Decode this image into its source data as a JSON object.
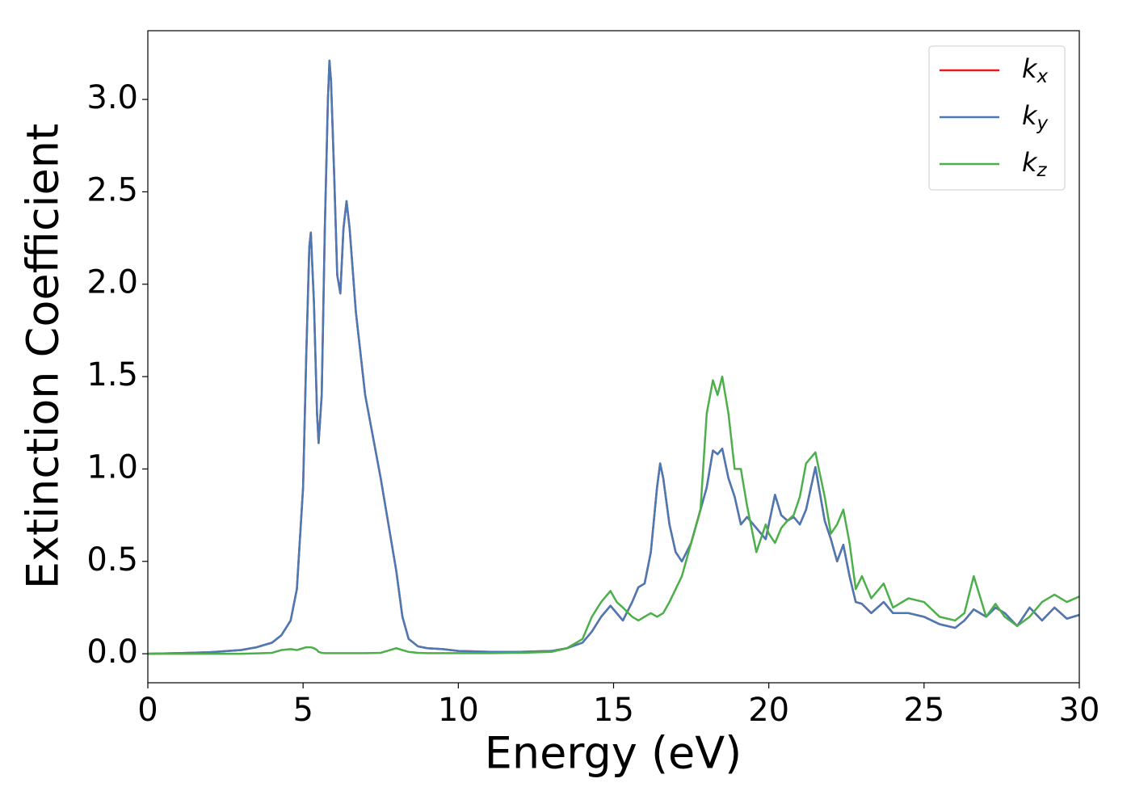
{
  "chart_data": {
    "type": "line",
    "xlabel": "Energy (eV)",
    "ylabel": "Extinction Coefficient",
    "xlim": [
      0,
      30
    ],
    "xticks": [
      0,
      5,
      10,
      15,
      20,
      25,
      30
    ],
    "ylim": [
      -0.157,
      3.372
    ],
    "yticks": [
      {
        "value": 0,
        "label": "0.0"
      },
      0.5,
      {
        "value": 1,
        "label": "1.0"
      },
      1.5,
      {
        "value": 2,
        "label": "2.0"
      },
      2.5,
      {
        "value": 3,
        "label": "3.0"
      }
    ],
    "legend": "upper right",
    "x": [
      0,
      1,
      2,
      3,
      3.5,
      4,
      4.3,
      4.6,
      4.8,
      5,
      5.1,
      5.2,
      5.25,
      5.35,
      5.45,
      5.5,
      5.6,
      5.7,
      5.8,
      5.85,
      5.9,
      6,
      6.1,
      6.2,
      6.3,
      6.4,
      6.5,
      6.7,
      7,
      7.5,
      7.8,
      8,
      8.2,
      8.4,
      8.7,
      9,
      9.5,
      10,
      11,
      12,
      13,
      13.5,
      14,
      14.3,
      14.6,
      14.9,
      15.1,
      15.3,
      15.6,
      15.8,
      16,
      16.2,
      16.4,
      16.5,
      16.6,
      16.8,
      17,
      17.2,
      17.5,
      17.8,
      18,
      18.2,
      18.35,
      18.5,
      18.7,
      18.9,
      19.1,
      19.3,
      19.6,
      19.9,
      20,
      20.2,
      20.4,
      20.6,
      20.8,
      21,
      21.2,
      21.5,
      21.8,
      22,
      22.2,
      22.4,
      22.6,
      22.8,
      23,
      23.3,
      23.7,
      24,
      24.5,
      25,
      25.5,
      26,
      26.3,
      26.6,
      27,
      27.3,
      27.6,
      28,
      28.4,
      28.8,
      29.2,
      29.6,
      30
    ],
    "series": [
      {
        "name": "kx",
        "color": "#e41a1c",
        "values": [
          0,
          0.003,
          0.008,
          0.02,
          0.035,
          0.06,
          0.1,
          0.18,
          0.35,
          0.9,
          1.6,
          2.2,
          2.28,
          1.9,
          1.3,
          1.14,
          1.4,
          2.3,
          3.0,
          3.21,
          3.1,
          2.6,
          2.05,
          1.95,
          2.3,
          2.45,
          2.3,
          1.85,
          1.4,
          0.95,
          0.65,
          0.45,
          0.2,
          0.08,
          0.04,
          0.03,
          0.025,
          0.015,
          0.01,
          0.01,
          0.015,
          0.03,
          0.06,
          0.12,
          0.2,
          0.26,
          0.22,
          0.18,
          0.28,
          0.36,
          0.38,
          0.55,
          0.9,
          1.03,
          0.95,
          0.7,
          0.55,
          0.5,
          0.6,
          0.78,
          0.9,
          1.1,
          1.08,
          1.11,
          0.95,
          0.85,
          0.7,
          0.74,
          0.68,
          0.62,
          0.7,
          0.86,
          0.75,
          0.72,
          0.74,
          0.7,
          0.78,
          1.01,
          0.72,
          0.62,
          0.5,
          0.59,
          0.42,
          0.28,
          0.27,
          0.22,
          0.28,
          0.22,
          0.22,
          0.2,
          0.16,
          0.14,
          0.18,
          0.24,
          0.2,
          0.25,
          0.22,
          0.15,
          0.25,
          0.18,
          0.25,
          0.19,
          0.21
        ]
      },
      {
        "name": "ky",
        "color": "#4a7ab5",
        "values": [
          0,
          0.003,
          0.008,
          0.02,
          0.035,
          0.06,
          0.1,
          0.18,
          0.35,
          0.9,
          1.6,
          2.2,
          2.28,
          1.9,
          1.3,
          1.14,
          1.4,
          2.3,
          3.0,
          3.21,
          3.1,
          2.6,
          2.05,
          1.95,
          2.3,
          2.45,
          2.3,
          1.85,
          1.4,
          0.95,
          0.65,
          0.45,
          0.2,
          0.08,
          0.04,
          0.03,
          0.025,
          0.015,
          0.01,
          0.01,
          0.015,
          0.03,
          0.06,
          0.12,
          0.2,
          0.26,
          0.22,
          0.18,
          0.28,
          0.36,
          0.38,
          0.55,
          0.9,
          1.03,
          0.95,
          0.7,
          0.55,
          0.5,
          0.6,
          0.78,
          0.9,
          1.1,
          1.08,
          1.11,
          0.95,
          0.85,
          0.7,
          0.74,
          0.68,
          0.62,
          0.7,
          0.86,
          0.75,
          0.72,
          0.74,
          0.7,
          0.78,
          1.01,
          0.72,
          0.62,
          0.5,
          0.59,
          0.42,
          0.28,
          0.27,
          0.22,
          0.28,
          0.22,
          0.22,
          0.2,
          0.16,
          0.14,
          0.18,
          0.24,
          0.2,
          0.25,
          0.22,
          0.15,
          0.25,
          0.18,
          0.25,
          0.19,
          0.21
        ]
      },
      {
        "name": "kz",
        "color": "#4daf4a",
        "values": [
          0,
          0,
          0,
          0,
          0.002,
          0.005,
          0.02,
          0.025,
          0.02,
          0.03,
          0.035,
          0.035,
          0.035,
          0.03,
          0.02,
          0.01,
          0.005,
          0.003,
          0.003,
          0.003,
          0.003,
          0.003,
          0.003,
          0.003,
          0.003,
          0.003,
          0.003,
          0.003,
          0.003,
          0.005,
          0.02,
          0.03,
          0.02,
          0.01,
          0.005,
          0.003,
          0.003,
          0.003,
          0.003,
          0.005,
          0.01,
          0.03,
          0.08,
          0.2,
          0.28,
          0.34,
          0.28,
          0.25,
          0.2,
          0.18,
          0.2,
          0.22,
          0.2,
          0.21,
          0.22,
          0.28,
          0.35,
          0.42,
          0.6,
          0.78,
          1.3,
          1.48,
          1.4,
          1.5,
          1.3,
          1.0,
          1.0,
          0.8,
          0.55,
          0.7,
          0.65,
          0.6,
          0.68,
          0.72,
          0.75,
          0.85,
          1.03,
          1.09,
          0.85,
          0.65,
          0.7,
          0.78,
          0.6,
          0.35,
          0.42,
          0.3,
          0.38,
          0.25,
          0.3,
          0.28,
          0.2,
          0.18,
          0.22,
          0.42,
          0.2,
          0.27,
          0.2,
          0.15,
          0.2,
          0.28,
          0.32,
          0.28,
          0.31
        ]
      }
    ]
  }
}
